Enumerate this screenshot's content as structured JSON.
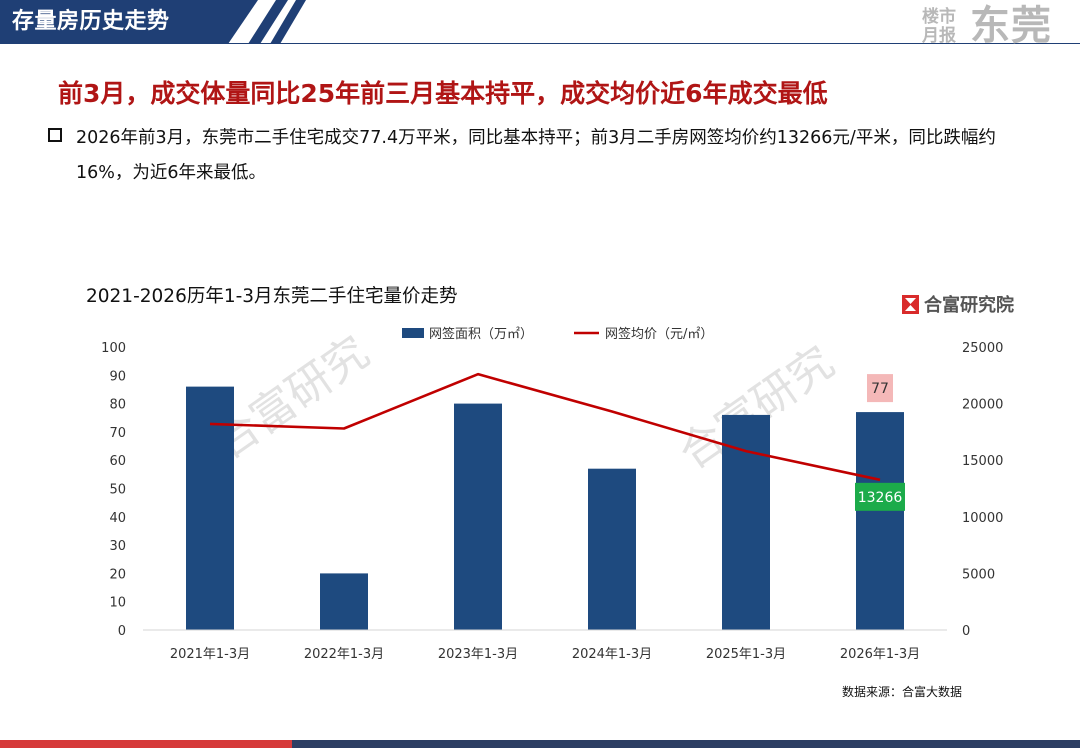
{
  "header": {
    "title": "存量房历史走势",
    "brand_small_1": "楼市",
    "brand_small_2": "月报",
    "brand_city": "东莞",
    "colors": {
      "bar": "#1e3f73",
      "accent": "#d63a3a"
    }
  },
  "headline": "前3月，成交体量同比25年前三月基本持平，成交均价近6年成交最低",
  "bullet": "2026年前3月，东莞市二手住宅成交77.4万平米，同比基本持平；前3月二手房网签均价约13266元/平米，同比跌幅约16%，为近6年来最低。",
  "watermark": "合富研究",
  "logo": {
    "text": "合富研究院"
  },
  "source": "数据来源：合富大数据",
  "chart_data": {
    "type": "bar",
    "title": "2021-2026历年1-3月东莞二手住宅量价走势",
    "categories": [
      "2021年1-3月",
      "2022年1-3月",
      "2023年1-3月",
      "2024年1-3月",
      "2025年1-3月",
      "2026年1-3月"
    ],
    "legend_position": "top",
    "grid": false,
    "series": [
      {
        "name": "网签面积（万㎡）",
        "type": "bar",
        "axis": "left",
        "color": "#1e4a7f",
        "values": [
          86,
          20,
          80,
          57,
          76,
          77
        ]
      },
      {
        "name": "网签均价（元/㎡）",
        "type": "line",
        "axis": "right",
        "color": "#c00000",
        "values": [
          18200,
          17800,
          22600,
          19300,
          15800,
          13266
        ]
      }
    ],
    "left_axis": {
      "ylim": [
        0,
        100
      ],
      "ticks": [
        0,
        10,
        20,
        30,
        40,
        50,
        60,
        70,
        80,
        90,
        100
      ]
    },
    "right_axis": {
      "ylim": [
        0,
        25000
      ],
      "ticks": [
        0,
        5000,
        10000,
        15000,
        20000,
        25000
      ]
    },
    "data_labels": [
      {
        "series": 0,
        "index": 5,
        "text": "77",
        "bg": "#f4b8b8",
        "color": "#333333"
      },
      {
        "series": 1,
        "index": 5,
        "text": "13266",
        "bg": "#1cab4a",
        "color": "#ffffff"
      }
    ]
  }
}
